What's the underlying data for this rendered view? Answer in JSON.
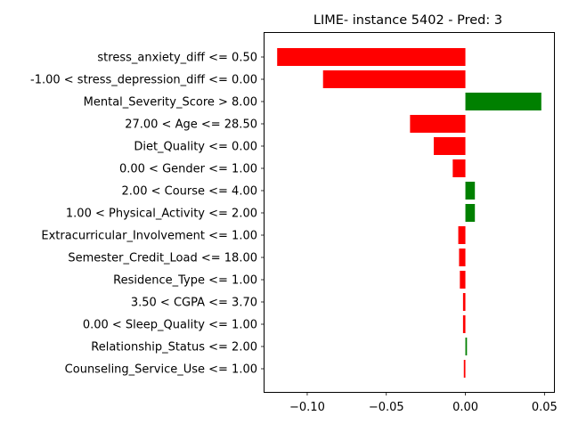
{
  "chart_data": {
    "type": "bar",
    "orientation": "horizontal",
    "title": "LIME- instance 5402 - Pred: 3",
    "xlabel": "",
    "ylabel": "",
    "xlim": [
      -0.127,
      0.056
    ],
    "xticks": [
      -0.1,
      -0.05,
      0.0,
      0.05
    ],
    "xtick_labels": [
      "−0.10",
      "−0.05",
      "0.00",
      "0.05"
    ],
    "grid": false,
    "positive_color": "#008000",
    "negative_color": "#ff0000",
    "categories": [
      "stress_anxiety_diff <= 0.50",
      "-1.00 < stress_depression_diff <= 0.00",
      "Mental_Severity_Score > 8.00",
      "27.00 < Age <= 28.50",
      "Diet_Quality <= 0.00",
      "0.00 < Gender <= 1.00",
      "2.00 < Course <= 4.00",
      "1.00 < Physical_Activity <= 2.00",
      "Extracurricular_Involvement <= 1.00",
      "Semester_Credit_Load <= 18.00",
      "Residence_Type <= 1.00",
      "3.50 < CGPA <= 3.70",
      "0.00 < Sleep_Quality <= 1.00",
      "Relationship_Status <= 2.00",
      "Counseling_Service_Use <= 1.00"
    ],
    "values": [
      -0.119,
      -0.09,
      0.048,
      -0.035,
      -0.02,
      -0.008,
      0.006,
      0.006,
      -0.0045,
      -0.004,
      -0.0035,
      -0.0015,
      -0.0015,
      0.001,
      -0.001
    ]
  }
}
